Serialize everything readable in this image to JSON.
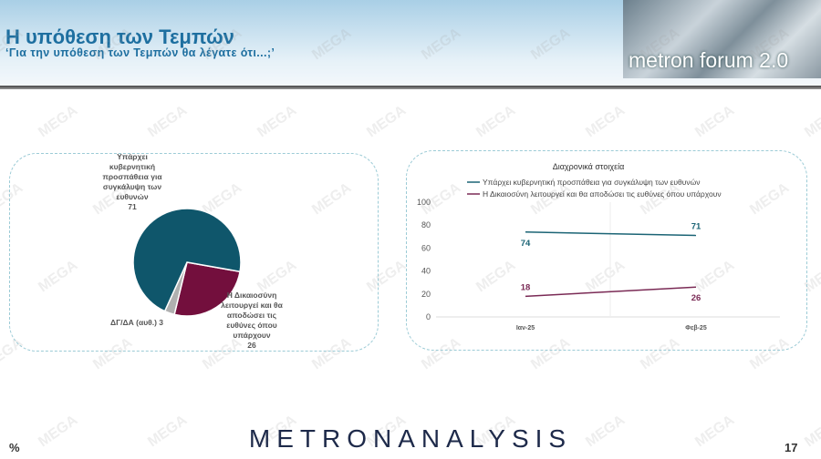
{
  "header": {
    "title": "Η υπόθεση των Τεμπών",
    "subtitle": "‘Για την υπόθεση  των Τεμπών θα λέγατε ότι...;’",
    "logo_text": "metron forum 2.0"
  },
  "watermark": "MEGA",
  "chart_data": [
    {
      "type": "pie",
      "slices": [
        {
          "label_lines": [
            "Υπάρχει",
            "κυβερνητική",
            "προσπάθεια για",
            "συγκάλυψη των",
            "ευθυνών"
          ],
          "label": "Υπάρχει κυβερνητική προσπάθεια για συγκάλυψη των ευθυνών",
          "value": 71,
          "color": "#0f566b"
        },
        {
          "label_lines": [
            "Η Δικαιοσύνη",
            "λειτουργεί και θα",
            "αποδώσει τις",
            "ευθύνες όπου",
            "υπάρχουν"
          ],
          "label": "Η Δικαιοσύνη λειτουργεί και θα αποδώσει τις ευθύνες όπου υπάρχουν",
          "value": 26,
          "color": "#730f3d"
        },
        {
          "label_lines": [
            "ΔΓ/ΔΑ (αυθ.) 3"
          ],
          "label": "ΔΓ/ΔΑ (αυθ.)",
          "value": 3,
          "color": "#b0b0b0"
        }
      ]
    },
    {
      "type": "line",
      "title": "Διαχρονικά στοιχεία",
      "categories": [
        "Ιαν-25",
        "Φεβ-25"
      ],
      "ylim": [
        0,
        100
      ],
      "yticks": [
        0,
        20,
        40,
        60,
        80,
        100
      ],
      "legend": "top",
      "series": [
        {
          "name": "Υπάρχει κυβερνητική προσπάθεια για συγκάλυψη των ευθυνών",
          "values": [
            74,
            71
          ],
          "color": "#1b6475"
        },
        {
          "name": "Η Δικαιοσύνη λειτουργεί και θα αποδώσει τις ευθύνες όπου υπάρχουν",
          "values": [
            18,
            26
          ],
          "color": "#7a2a55"
        }
      ]
    }
  ],
  "footer": {
    "brand": "METRONANALYSIS",
    "unit": "%",
    "page": "17"
  }
}
